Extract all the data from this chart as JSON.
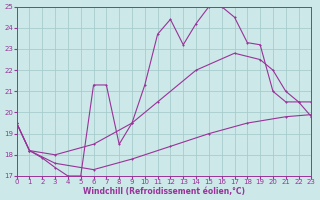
{
  "xlabel": "Windchill (Refroidissement éolien,°C)",
  "bg_color": "#cce8e8",
  "grid_color": "#a8cccc",
  "line_color": "#993399",
  "x_min": 0,
  "x_max": 23,
  "y_min": 17,
  "y_max": 25,
  "line1_x": [
    0,
    1,
    2,
    3,
    4,
    5,
    6,
    7,
    8,
    9,
    10,
    11,
    12,
    13,
    14,
    15,
    16,
    17,
    18,
    19,
    20,
    21,
    22,
    23
  ],
  "line1_y": [
    19.5,
    18.2,
    17.85,
    17.4,
    17.0,
    17.0,
    21.3,
    21.3,
    18.5,
    19.5,
    21.3,
    23.7,
    24.4,
    23.2,
    24.2,
    25.0,
    25.0,
    24.5,
    23.3,
    23.2,
    21.0,
    20.5,
    20.5,
    19.8
  ],
  "line2_x": [
    0,
    1,
    3,
    6,
    9,
    11,
    14,
    17,
    19,
    20,
    21,
    22,
    23
  ],
  "line2_y": [
    19.5,
    18.2,
    18.0,
    18.5,
    19.5,
    20.5,
    22.0,
    22.8,
    22.5,
    22.0,
    21.0,
    20.5,
    20.5
  ],
  "line3_x": [
    0,
    1,
    3,
    6,
    9,
    12,
    15,
    18,
    21,
    23
  ],
  "line3_y": [
    19.5,
    18.2,
    17.6,
    17.3,
    17.8,
    18.4,
    19.0,
    19.5,
    19.8,
    19.9
  ],
  "yticks": [
    17,
    18,
    19,
    20,
    21,
    22,
    23,
    24,
    25
  ],
  "xticks": [
    0,
    1,
    2,
    3,
    4,
    5,
    6,
    7,
    8,
    9,
    10,
    11,
    12,
    13,
    14,
    15,
    16,
    17,
    18,
    19,
    20,
    21,
    22,
    23
  ]
}
